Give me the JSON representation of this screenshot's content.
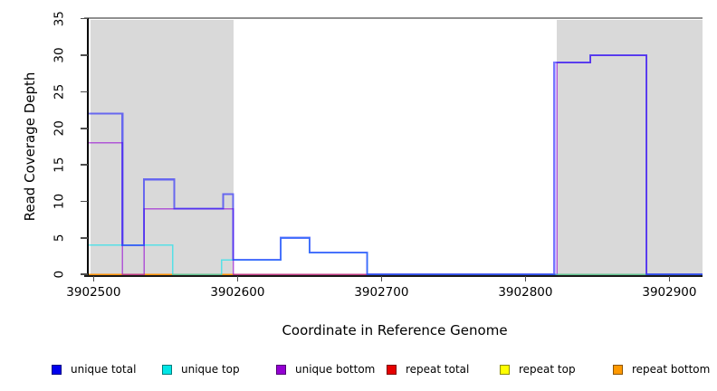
{
  "chart_data": {
    "type": "line",
    "line_style": "step",
    "title": "",
    "xlabel": "Coordinate in Reference Genome",
    "ylabel": "Read Coverage Depth",
    "xlim": [
      3902496,
      3902923
    ],
    "ylim": [
      0,
      35
    ],
    "grid": false,
    "x_ticks": [
      {
        "value": 3902500,
        "label": "3902500"
      },
      {
        "value": 3902600,
        "label": "3902600"
      },
      {
        "value": 3902700,
        "label": "3902700"
      },
      {
        "value": 3902800,
        "label": "3902800"
      },
      {
        "value": 3902900,
        "label": "3902900"
      }
    ],
    "y_ticks": [
      {
        "value": 0,
        "label": "0"
      },
      {
        "value": 5,
        "label": "5"
      },
      {
        "value": 10,
        "label": "10"
      },
      {
        "value": 15,
        "label": "15"
      },
      {
        "value": 20,
        "label": "20"
      },
      {
        "value": 25,
        "label": "25"
      },
      {
        "value": 30,
        "label": "30"
      },
      {
        "value": 35,
        "label": "35"
      }
    ],
    "shaded_regions": [
      {
        "x0": 3902498,
        "x1": 3902597,
        "color": "#d9d9d9"
      },
      {
        "x0": 3902822,
        "x1": 3902923,
        "color": "#d9d9d9"
      }
    ],
    "series": [
      {
        "name": "repeat top",
        "color": "#ffff00",
        "opacity": 0.6,
        "line_width": 1.2,
        "x": [
          3902496
        ],
        "v": [
          0
        ]
      },
      {
        "name": "repeat total",
        "color": "#e00000",
        "opacity": 0.6,
        "line_width": 1.2,
        "x": [
          3902496
        ],
        "v": [
          0
        ]
      },
      {
        "name": "repeat bottom",
        "color": "#ff9d00",
        "opacity": 0.8,
        "line_width": 1.8,
        "x": [
          3902496
        ],
        "v": [
          0
        ]
      },
      {
        "name": "unique bottom",
        "color": "#9400d3",
        "opacity": 0.6,
        "line_width": 1.5,
        "x": [
          3902496,
          3902520,
          3902535,
          3902597,
          3902822,
          3902845,
          3902884
        ],
        "v": [
          18,
          0,
          9,
          0,
          29,
          30,
          0
        ]
      },
      {
        "name": "unique top",
        "color": "#00e5ee",
        "opacity": 0.6,
        "line_width": 1.5,
        "x": [
          3902496,
          3902555,
          3902589,
          3902630,
          3902650,
          3902690
        ],
        "v": [
          4,
          0,
          2,
          5,
          3,
          0
        ]
      },
      {
        "name": "unique total",
        "color": "#1414ff",
        "opacity": 0.58,
        "line_width": 2.2,
        "x": [
          3902496,
          3902520,
          3902535,
          3902556,
          3902590,
          3902597,
          3902630,
          3902650,
          3902690,
          3902820,
          3902845,
          3902884
        ],
        "v": [
          22,
          4,
          13,
          9,
          11,
          2,
          5,
          3,
          0,
          29,
          30,
          0
        ]
      }
    ],
    "legend_position": "bottom",
    "legend": [
      {
        "label": "unique total",
        "color": "#0000ee"
      },
      {
        "label": "unique top",
        "color": "#00e6e6"
      },
      {
        "label": "unique bottom",
        "color": "#9400d3"
      },
      {
        "label": "repeat total",
        "color": "#e60000"
      },
      {
        "label": "repeat top",
        "color": "#ffff00"
      },
      {
        "label": "repeat bottom",
        "color": "#ff9900"
      }
    ]
  }
}
